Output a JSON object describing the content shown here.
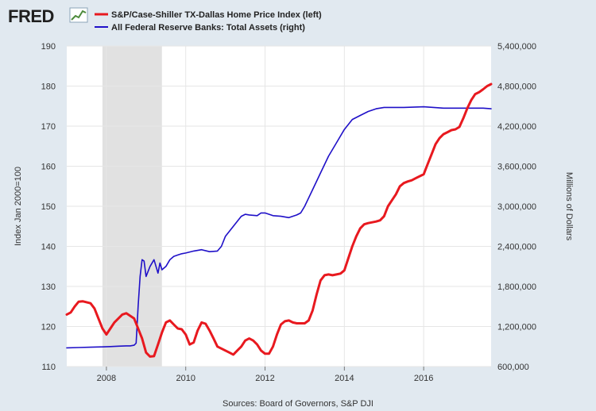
{
  "brand": {
    "name": "FRED"
  },
  "legend": [
    {
      "label": "S&P/Case-Shiller TX-Dallas Home Price Index (left)",
      "color": "#e8191f"
    },
    {
      "label": "All Federal Reserve Banks: Total Assets (right)",
      "color": "#1f10c8"
    }
  ],
  "source": "Sources: Board of Governors, S&P DJI",
  "chart_data": {
    "type": "line",
    "ylabel": "Index Jan 2000=100",
    "y2label": "Millions of Dollars",
    "xlim": [
      2007.0,
      2017.7
    ],
    "ylim": [
      110,
      190
    ],
    "y2lim": [
      600000,
      5400000
    ],
    "x_ticks": [
      2008,
      2010,
      2012,
      2014,
      2016
    ],
    "x_tick_labels": [
      "2008",
      "2010",
      "2012",
      "2014",
      "2016"
    ],
    "y_ticks": [
      110,
      120,
      130,
      140,
      150,
      160,
      170,
      180,
      190
    ],
    "y_tick_labels": [
      "110",
      "120",
      "130",
      "140",
      "150",
      "160",
      "170",
      "180",
      "190"
    ],
    "y2_ticks": [
      600000,
      1200000,
      1800000,
      2400000,
      3000000,
      3600000,
      4200000,
      4800000,
      5400000
    ],
    "y2_tick_labels": [
      "600,000",
      "1,200,000",
      "1,800,000",
      "2,400,000",
      "3,000,000",
      "3,600,000",
      "4,200,000",
      "4,800,000",
      "5,400,000"
    ],
    "grid": true,
    "recession_shading": [
      [
        2007.9,
        2009.4
      ]
    ],
    "series": [
      {
        "name": "S&P/Case-Shiller TX-Dallas Home Price Index (left)",
        "axis": "left",
        "color": "#e8191f",
        "x": [
          2007.0,
          2007.1,
          2007.2,
          2007.3,
          2007.4,
          2007.6,
          2007.7,
          2007.8,
          2007.9,
          2008.0,
          2008.1,
          2008.2,
          2008.4,
          2008.5,
          2008.7,
          2008.8,
          2008.9,
          2009.0,
          2009.1,
          2009.2,
          2009.3,
          2009.4,
          2009.5,
          2009.6,
          2009.7,
          2009.8,
          2009.9,
          2010.0,
          2010.1,
          2010.2,
          2010.3,
          2010.4,
          2010.5,
          2010.6,
          2010.7,
          2010.8,
          2010.9,
          2011.0,
          2011.1,
          2011.2,
          2011.3,
          2011.4,
          2011.5,
          2011.6,
          2011.7,
          2011.8,
          2011.9,
          2012.0,
          2012.1,
          2012.2,
          2012.3,
          2012.4,
          2012.5,
          2012.6,
          2012.7,
          2012.8,
          2013.0,
          2013.1,
          2013.2,
          2013.3,
          2013.4,
          2013.5,
          2013.6,
          2013.7,
          2013.8,
          2013.9,
          2014.0,
          2014.1,
          2014.2,
          2014.3,
          2014.4,
          2014.5,
          2014.6,
          2014.7,
          2014.8,
          2014.9,
          2015.0,
          2015.1,
          2015.2,
          2015.3,
          2015.4,
          2015.5,
          2015.6,
          2015.7,
          2015.8,
          2016.0,
          2016.1,
          2016.2,
          2016.3,
          2016.4,
          2016.5,
          2016.6,
          2016.7,
          2016.8,
          2016.9,
          2017.0,
          2017.1,
          2017.2,
          2017.3,
          2017.4,
          2017.5,
          2017.6,
          2017.7
        ],
        "values": [
          123.0,
          123.5,
          125.0,
          126.2,
          126.3,
          125.8,
          124.5,
          122.0,
          119.5,
          118.0,
          119.5,
          121.0,
          123.0,
          123.3,
          122.0,
          119.5,
          117.0,
          113.5,
          112.5,
          112.6,
          115.5,
          118.5,
          121.0,
          121.5,
          120.5,
          119.5,
          119.3,
          118.0,
          115.5,
          116.0,
          119.0,
          121.0,
          120.7,
          119.0,
          117.0,
          115.0,
          114.5,
          114.0,
          113.5,
          113.0,
          114.0,
          115.0,
          116.5,
          117.0,
          116.5,
          115.5,
          114.0,
          113.2,
          113.2,
          115.0,
          118.0,
          120.5,
          121.3,
          121.5,
          121.0,
          120.8,
          120.8,
          121.5,
          124.0,
          128.0,
          131.5,
          132.8,
          133.0,
          132.8,
          133.0,
          133.2,
          134.0,
          137.0,
          140.0,
          142.5,
          144.5,
          145.5,
          145.8,
          146.0,
          146.2,
          146.5,
          147.5,
          150.0,
          151.5,
          153.0,
          155.0,
          155.8,
          156.2,
          156.5,
          157.0,
          158.0,
          160.5,
          163.0,
          165.5,
          167.0,
          168.0,
          168.5,
          169.0,
          169.2,
          169.8,
          172.0,
          174.5,
          176.5,
          178.0,
          178.5,
          179.2,
          180.0,
          180.5
        ]
      },
      {
        "name": "All Federal Reserve Banks: Total Assets (right)",
        "axis": "right",
        "color": "#1f10c8",
        "x": [
          2007.0,
          2007.3,
          2007.6,
          2007.9,
          2008.1,
          2008.3,
          2008.5,
          2008.6,
          2008.7,
          2008.75,
          2008.8,
          2008.85,
          2008.9,
          2008.95,
          2009.0,
          2009.1,
          2009.2,
          2009.3,
          2009.35,
          2009.4,
          2009.5,
          2009.6,
          2009.7,
          2009.8,
          2009.9,
          2010.0,
          2010.2,
          2010.4,
          2010.6,
          2010.8,
          2010.9,
          2011.0,
          2011.2,
          2011.4,
          2011.5,
          2011.6,
          2011.8,
          2011.9,
          2012.0,
          2012.2,
          2012.4,
          2012.6,
          2012.8,
          2012.9,
          2013.0,
          2013.2,
          2013.4,
          2013.6,
          2013.8,
          2014.0,
          2014.2,
          2014.4,
          2014.6,
          2014.8,
          2015.0,
          2015.5,
          2016.0,
          2016.5,
          2017.0,
          2017.5,
          2017.7
        ],
        "values": [
          880000,
          885000,
          890000,
          895000,
          900000,
          905000,
          910000,
          910000,
          920000,
          950000,
          1500000,
          1950000,
          2200000,
          2180000,
          1950000,
          2100000,
          2200000,
          2000000,
          2150000,
          2050000,
          2100000,
          2200000,
          2250000,
          2270000,
          2290000,
          2300000,
          2330000,
          2350000,
          2320000,
          2330000,
          2400000,
          2550000,
          2700000,
          2850000,
          2880000,
          2870000,
          2860000,
          2900000,
          2900000,
          2860000,
          2850000,
          2830000,
          2870000,
          2900000,
          3000000,
          3250000,
          3500000,
          3750000,
          3950000,
          4150000,
          4300000,
          4360000,
          4420000,
          4460000,
          4480000,
          4480000,
          4490000,
          4470000,
          4470000,
          4470000,
          4460000
        ]
      }
    ]
  }
}
